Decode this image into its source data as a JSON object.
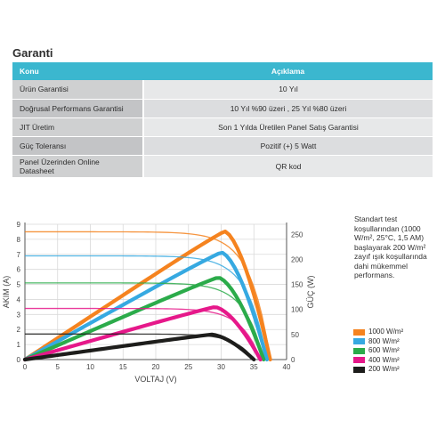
{
  "title": "Garanti",
  "table": {
    "headers": [
      "Konu",
      "Açıklama"
    ],
    "rows": [
      {
        "konu": "Ürün Garantisi",
        "aciklama": "10 Yıl"
      },
      {
        "konu": "Doğrusal Performans Garantisi",
        "aciklama": "10 Yıl %90 üzeri , 25 Yıl %80 üzeri"
      },
      {
        "konu": "JIT Üretim",
        "aciklama": "Son 1 Yılda Üretilen Panel Satış Garantisi"
      },
      {
        "konu": "Güç Toleransı",
        "aciklama": "Pozitif (+) 5 Watt"
      },
      {
        "konu": "Panel Üzerinden Online Datasheet",
        "aciklama": "QR kod"
      }
    ]
  },
  "note": "Standart test koşullarından (1000 W/m², 25°C, 1,5 AM) başlayarak 200 W/m² zayıf ışık koşullarında dahi mükemmel performans.",
  "chart_data": {
    "type": "line",
    "xlabel": "VOLTAJ (V)",
    "ylabel": "AKIM (A)",
    "y2label": "GÜÇ (W)",
    "xlim": [
      0,
      40
    ],
    "ylim": [
      0,
      9
    ],
    "y2lim": [
      0,
      270
    ],
    "xticks": [
      0,
      5,
      10,
      15,
      20,
      25,
      30,
      35,
      40
    ],
    "yticks": [
      0,
      1,
      2,
      3,
      4,
      5,
      6,
      7,
      8,
      9
    ],
    "y2ticks": [
      0,
      50,
      100,
      150,
      200,
      250
    ],
    "grid": true,
    "legend_position": "bottom-right",
    "series": [
      {
        "name": "1000 W/m²",
        "color": "#f5831f",
        "isc": 8.5,
        "voc": 37.5,
        "pmax": 256,
        "vmp": 30.5
      },
      {
        "name": "800 W/m²",
        "color": "#36a9e1",
        "isc": 6.9,
        "voc": 37.0,
        "pmax": 214,
        "vmp": 30.0
      },
      {
        "name": "600 W/m²",
        "color": "#2bab4a",
        "isc": 5.1,
        "voc": 36.5,
        "pmax": 164,
        "vmp": 29.5
      },
      {
        "name": "400 W/m²",
        "color": "#e6188a",
        "isc": 3.4,
        "voc": 36.0,
        "pmax": 105,
        "vmp": 29.0
      },
      {
        "name": "200 W/m²",
        "color": "#1d1d1b",
        "isc": 1.7,
        "voc": 35.0,
        "pmax": 50,
        "vmp": 28.5
      }
    ]
  }
}
